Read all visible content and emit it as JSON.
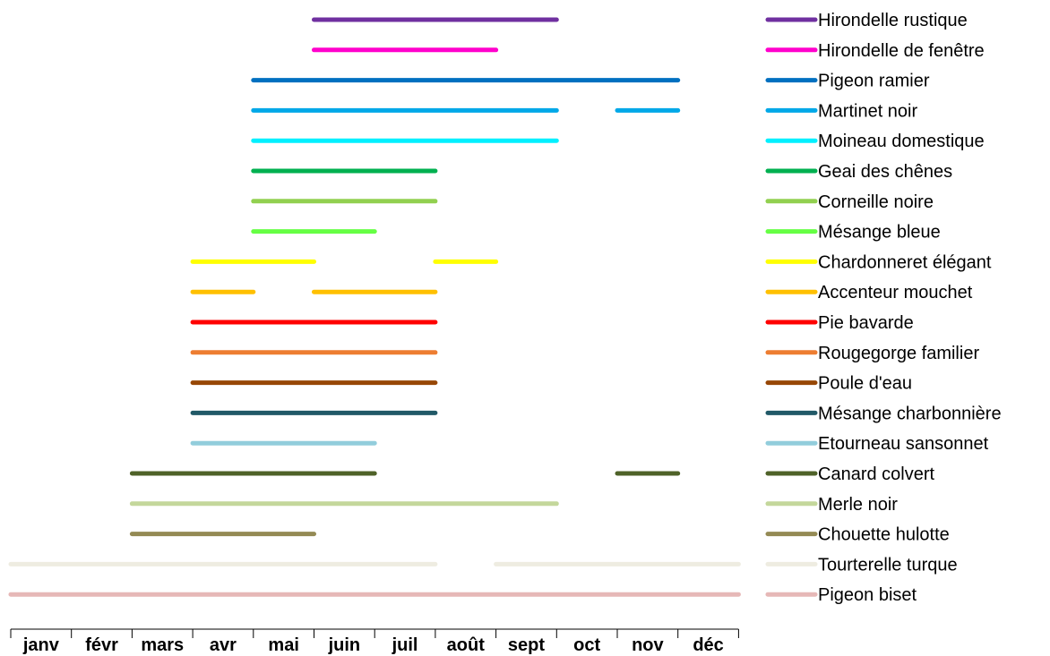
{
  "chart_data": {
    "type": "gantt",
    "title": "",
    "xlabel": "",
    "ylabel": "",
    "categories": [
      "janv",
      "févr",
      "mars",
      "avr",
      "mai",
      "juin",
      "juil",
      "août",
      "sept",
      "oct",
      "nov",
      "déc"
    ],
    "xlim": [
      0,
      12
    ],
    "legend_position": "right",
    "grid": false,
    "series": [
      {
        "name": "Hirondelle rustique",
        "color": "#7030A0",
        "ranges": [
          [
            5.0,
            9.0
          ]
        ]
      },
      {
        "name": "Hirondelle de fenêtre",
        "color": "#FF00CC",
        "ranges": [
          [
            5.0,
            8.0
          ]
        ]
      },
      {
        "name": "Pigeon ramier",
        "color": "#0070C0",
        "ranges": [
          [
            4.0,
            11.0
          ]
        ]
      },
      {
        "name": "Martinet noir",
        "color": "#00A8E8",
        "ranges": [
          [
            4.0,
            9.0
          ],
          [
            10.0,
            11.0
          ]
        ]
      },
      {
        "name": "Moineau domestique",
        "color": "#00F0FF",
        "ranges": [
          [
            4.0,
            9.0
          ]
        ]
      },
      {
        "name": "Geai des chênes",
        "color": "#00B050",
        "ranges": [
          [
            4.0,
            7.0
          ]
        ]
      },
      {
        "name": "Corneille noire",
        "color": "#92D050",
        "ranges": [
          [
            4.0,
            7.0
          ]
        ]
      },
      {
        "name": "Mésange bleue",
        "color": "#66FF44",
        "ranges": [
          [
            4.0,
            6.0
          ]
        ]
      },
      {
        "name": "Chardonneret élégant",
        "color": "#FFFF00",
        "ranges": [
          [
            3.0,
            5.0
          ],
          [
            7.0,
            8.0
          ]
        ]
      },
      {
        "name": "Accenteur mouchet",
        "color": "#FFC000",
        "ranges": [
          [
            3.0,
            4.0
          ],
          [
            5.0,
            7.0
          ]
        ]
      },
      {
        "name": "Pie bavarde",
        "color": "#FF0000",
        "ranges": [
          [
            3.0,
            7.0
          ]
        ]
      },
      {
        "name": "Rougegorge familier",
        "color": "#ED7D31",
        "ranges": [
          [
            3.0,
            7.0
          ]
        ]
      },
      {
        "name": "Poule d'eau",
        "color": "#974706",
        "ranges": [
          [
            3.0,
            7.0
          ]
        ]
      },
      {
        "name": "Mésange charbonnière",
        "color": "#215967",
        "ranges": [
          [
            3.0,
            7.0
          ]
        ]
      },
      {
        "name": "Etourneau sansonnet",
        "color": "#92CDDC",
        "ranges": [
          [
            3.0,
            6.0
          ]
        ]
      },
      {
        "name": "Canard colvert",
        "color": "#4F6228",
        "ranges": [
          [
            2.0,
            6.0
          ],
          [
            10.0,
            11.0
          ]
        ]
      },
      {
        "name": "Merle noir",
        "color": "#C4D79B",
        "ranges": [
          [
            2.0,
            9.0
          ]
        ]
      },
      {
        "name": "Chouette hulotte",
        "color": "#948A54",
        "ranges": [
          [
            2.0,
            5.0
          ]
        ]
      },
      {
        "name": "Tourterelle turque",
        "color": "#EEECE1",
        "ranges": [
          [
            0.0,
            7.0
          ],
          [
            8.0,
            12.0
          ]
        ]
      },
      {
        "name": "Pigeon biset",
        "color": "#E6B8B7",
        "ranges": [
          [
            0.0,
            12.0
          ]
        ]
      }
    ]
  }
}
